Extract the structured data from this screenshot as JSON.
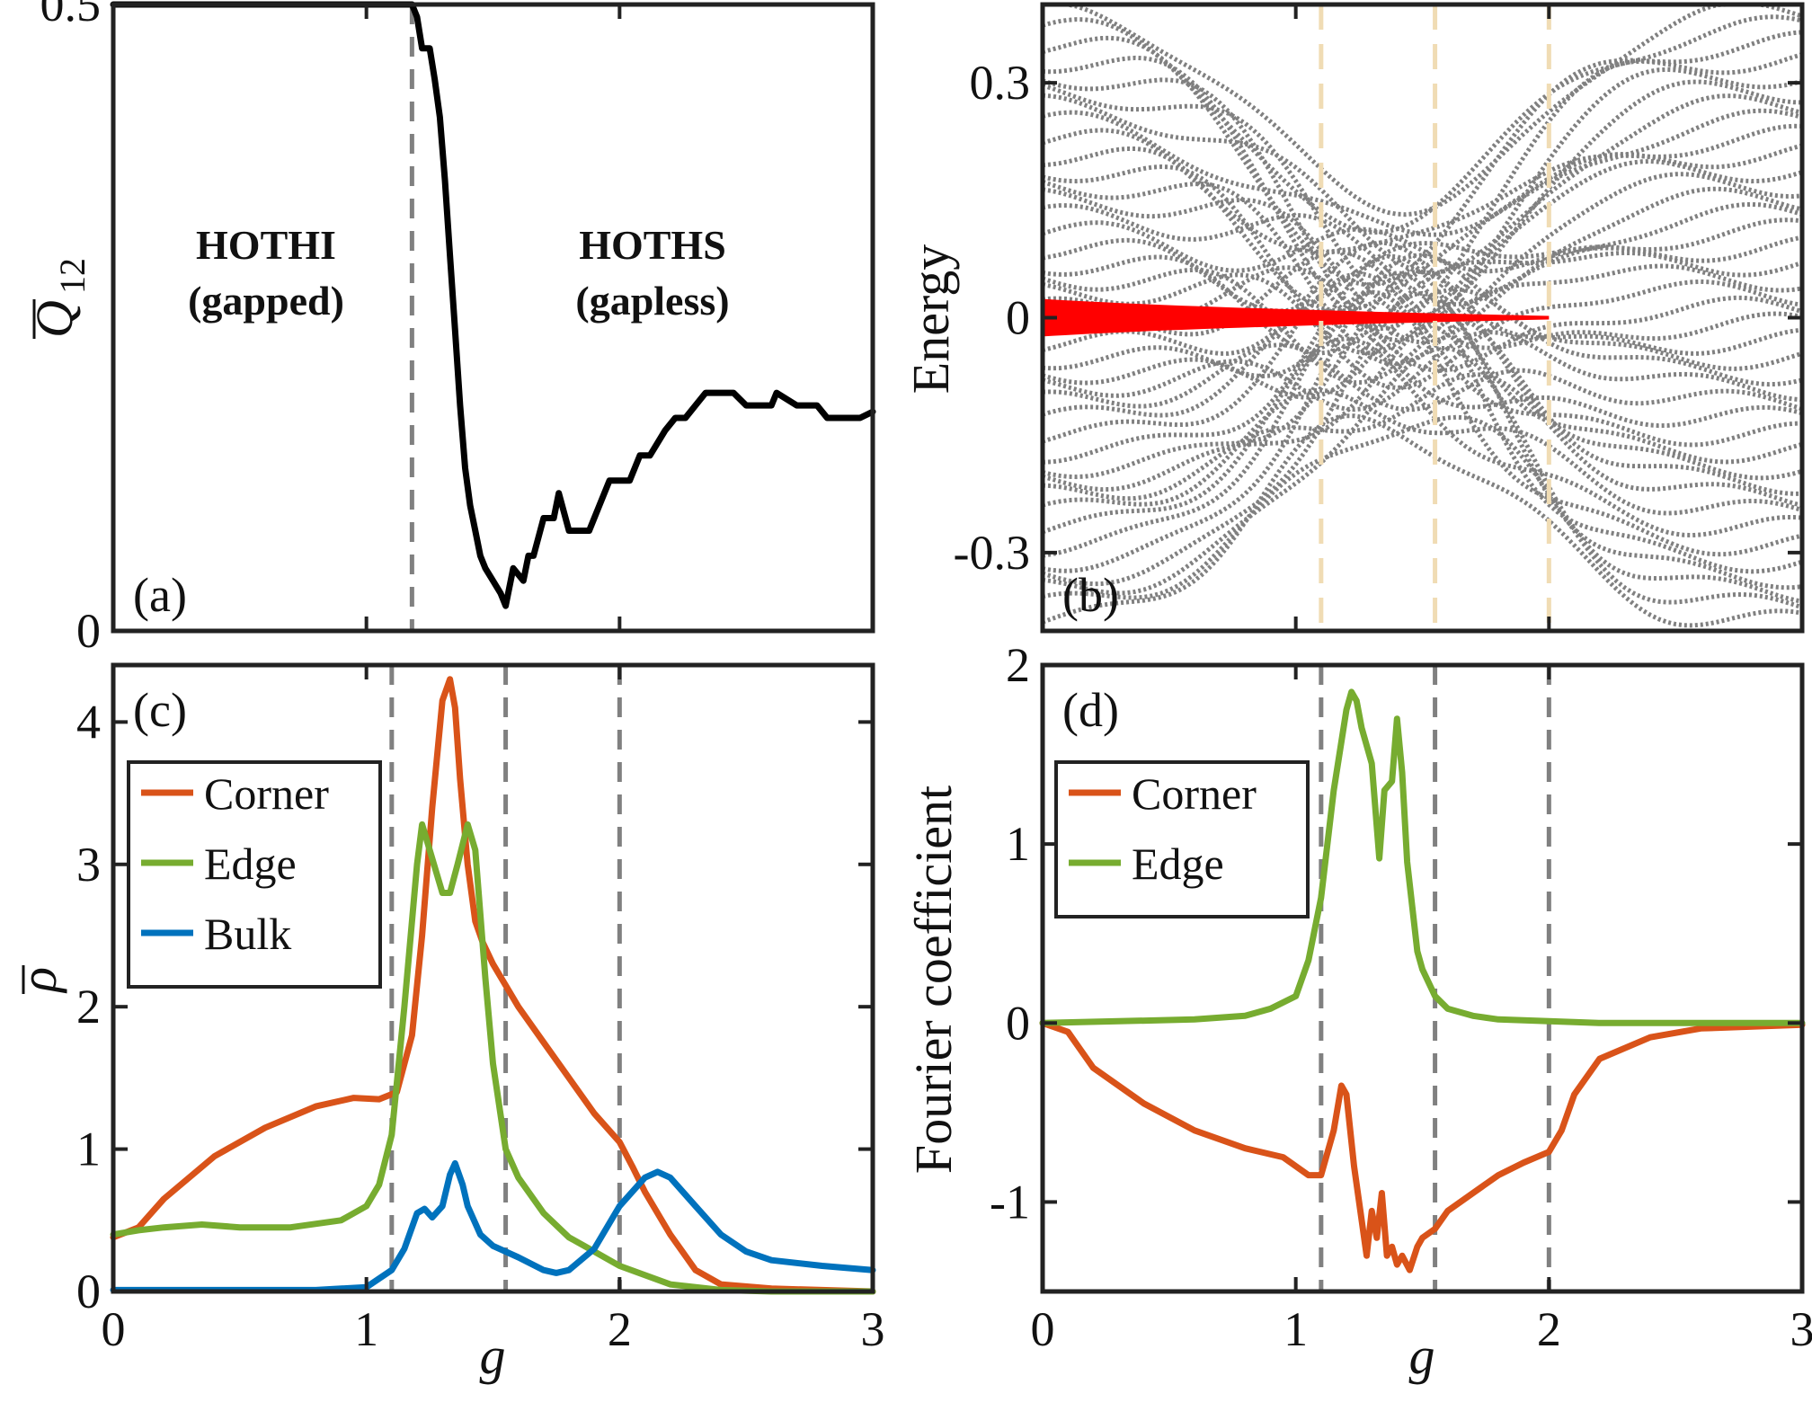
{
  "chart_data": [
    {
      "panel": "(a)",
      "type": "line",
      "ylabel_main": "Q",
      "ylabel_sub": "12",
      "xlim": [
        0,
        3
      ],
      "ylim": [
        0,
        0.5
      ],
      "xticks": [
        0,
        1,
        2,
        3
      ],
      "yticks": [
        0,
        0.5
      ],
      "ytick_labels": [
        "0",
        "0.5"
      ],
      "reference_line_y": 0.5,
      "transition_g": [
        1.18
      ],
      "annotations": [
        {
          "line1": "HOTHI",
          "line2": "(gapped)"
        },
        {
          "line1": "HOTHS",
          "line2": "(gapless)"
        }
      ],
      "series": [
        {
          "color": "#000000",
          "x": [
            0,
            0.3,
            0.6,
            0.9,
            1.18,
            1.2,
            1.22,
            1.25,
            1.27,
            1.29,
            1.31,
            1.33,
            1.35,
            1.37,
            1.39,
            1.41,
            1.43,
            1.45,
            1.47,
            1.5,
            1.53,
            1.55,
            1.58,
            1.62,
            1.64,
            1.66,
            1.7,
            1.74,
            1.76,
            1.8,
            1.88,
            1.92,
            1.96,
            2.04,
            2.08,
            2.12,
            2.18,
            2.22,
            2.26,
            2.3,
            2.34,
            2.4,
            2.45,
            2.5,
            2.6,
            2.62,
            2.7,
            2.78,
            2.82,
            2.86,
            2.9,
            2.95,
            3.0
          ],
          "y": [
            0.5,
            0.5,
            0.5,
            0.5,
            0.5,
            0.49,
            0.465,
            0.465,
            0.44,
            0.41,
            0.36,
            0.3,
            0.24,
            0.18,
            0.13,
            0.1,
            0.08,
            0.06,
            0.05,
            0.04,
            0.03,
            0.02,
            0.05,
            0.04,
            0.06,
            0.06,
            0.09,
            0.09,
            0.11,
            0.08,
            0.08,
            0.1,
            0.12,
            0.12,
            0.14,
            0.14,
            0.16,
            0.17,
            0.17,
            0.18,
            0.19,
            0.19,
            0.19,
            0.18,
            0.18,
            0.19,
            0.18,
            0.18,
            0.17,
            0.17,
            0.17,
            0.17,
            0.175
          ]
        }
      ]
    },
    {
      "panel": "(b)",
      "type": "scatter",
      "ylabel": "Energy",
      "xlim": [
        0,
        3
      ],
      "ylim": [
        -0.4,
        0.4
      ],
      "yticks": [
        -0.3,
        0,
        0.3
      ],
      "ytick_labels": [
        "-0.3",
        "0",
        "0.3"
      ],
      "transition_g": [
        1.1,
        1.55,
        2.0
      ],
      "bulk_color": "#808080",
      "zero_mode_color": "#ff0000",
      "zero_mode_range": [
        0,
        2.0
      ],
      "zero_mode_max_halfwidth": 0.012,
      "band_levels": 40,
      "band_spread_max": 0.09,
      "band_focus_g": 1.4
    },
    {
      "panel": "(c)",
      "type": "line",
      "xlabel": "g",
      "ylabel_main": "ρ",
      "xlim": [
        0,
        3
      ],
      "ylim": [
        0,
        4.4
      ],
      "xticks": [
        0,
        1,
        2,
        3
      ],
      "yticks": [
        0,
        1,
        2,
        3,
        4
      ],
      "transition_g": [
        1.1,
        1.55,
        2.0
      ],
      "legend_position": "upper-left",
      "series": [
        {
          "name": "Corner",
          "color": "#d95319",
          "x": [
            0,
            0.1,
            0.2,
            0.4,
            0.6,
            0.8,
            0.95,
            1.05,
            1.12,
            1.18,
            1.22,
            1.26,
            1.3,
            1.33,
            1.35,
            1.37,
            1.4,
            1.43,
            1.46,
            1.5,
            1.55,
            1.6,
            1.7,
            1.8,
            1.9,
            2.0,
            2.05,
            2.1,
            2.2,
            2.3,
            2.4,
            2.6,
            2.8,
            3.0
          ],
          "y": [
            0.38,
            0.45,
            0.65,
            0.95,
            1.15,
            1.3,
            1.36,
            1.35,
            1.4,
            1.8,
            2.5,
            3.4,
            4.15,
            4.3,
            4.1,
            3.6,
            3.0,
            2.6,
            2.45,
            2.3,
            2.15,
            2.0,
            1.75,
            1.5,
            1.25,
            1.05,
            0.88,
            0.7,
            0.4,
            0.15,
            0.05,
            0.02,
            0.01,
            0.0
          ]
        },
        {
          "name": "Edge",
          "color": "#77ac30",
          "x": [
            0,
            0.1,
            0.2,
            0.35,
            0.5,
            0.7,
            0.9,
            1.0,
            1.05,
            1.1,
            1.15,
            1.2,
            1.22,
            1.25,
            1.3,
            1.33,
            1.36,
            1.4,
            1.43,
            1.47,
            1.5,
            1.55,
            1.6,
            1.7,
            1.8,
            1.9,
            2.0,
            2.2,
            2.4,
            2.6,
            2.8,
            3.0
          ],
          "y": [
            0.4,
            0.43,
            0.45,
            0.47,
            0.45,
            0.45,
            0.5,
            0.6,
            0.75,
            1.1,
            2.0,
            3.0,
            3.28,
            3.1,
            2.8,
            2.8,
            3.0,
            3.28,
            3.1,
            2.2,
            1.6,
            1.0,
            0.8,
            0.55,
            0.38,
            0.28,
            0.18,
            0.05,
            0.01,
            0.0,
            0.0,
            0.0
          ]
        },
        {
          "name": "Bulk",
          "color": "#0072bd",
          "x": [
            0,
            0.5,
            0.8,
            1.0,
            1.1,
            1.15,
            1.2,
            1.23,
            1.26,
            1.3,
            1.33,
            1.35,
            1.38,
            1.4,
            1.45,
            1.5,
            1.6,
            1.7,
            1.75,
            1.8,
            1.9,
            2.0,
            2.1,
            2.15,
            2.2,
            2.3,
            2.4,
            2.5,
            2.6,
            2.8,
            3.0
          ],
          "y": [
            0.01,
            0.01,
            0.01,
            0.03,
            0.15,
            0.3,
            0.55,
            0.58,
            0.52,
            0.6,
            0.82,
            0.9,
            0.75,
            0.6,
            0.4,
            0.32,
            0.24,
            0.15,
            0.13,
            0.15,
            0.3,
            0.6,
            0.8,
            0.84,
            0.8,
            0.6,
            0.4,
            0.28,
            0.22,
            0.18,
            0.15
          ]
        }
      ]
    },
    {
      "panel": "(d)",
      "type": "line",
      "xlabel": "g",
      "ylabel": "Fourier coefficient",
      "xlim": [
        0,
        3
      ],
      "ylim": [
        -1.5,
        2.0
      ],
      "xticks": [
        0,
        1,
        2,
        3
      ],
      "yticks": [
        -1,
        0,
        1,
        2
      ],
      "transition_g": [
        1.1,
        1.55,
        2.0
      ],
      "legend_position": "upper-left",
      "series": [
        {
          "name": "Corner",
          "color": "#d95319",
          "x": [
            0,
            0.1,
            0.2,
            0.4,
            0.6,
            0.8,
            0.95,
            1.05,
            1.1,
            1.15,
            1.18,
            1.2,
            1.23,
            1.26,
            1.28,
            1.3,
            1.32,
            1.34,
            1.36,
            1.38,
            1.4,
            1.42,
            1.45,
            1.48,
            1.5,
            1.55,
            1.6,
            1.7,
            1.8,
            1.9,
            2.0,
            2.05,
            2.1,
            2.2,
            2.4,
            2.6,
            3.0
          ],
          "y": [
            0.0,
            -0.05,
            -0.25,
            -0.45,
            -0.6,
            -0.7,
            -0.75,
            -0.85,
            -0.85,
            -0.6,
            -0.35,
            -0.4,
            -0.8,
            -1.1,
            -1.3,
            -1.05,
            -1.2,
            -0.95,
            -1.3,
            -1.25,
            -1.35,
            -1.3,
            -1.38,
            -1.25,
            -1.2,
            -1.15,
            -1.05,
            -0.95,
            -0.85,
            -0.78,
            -0.72,
            -0.6,
            -0.4,
            -0.2,
            -0.08,
            -0.03,
            -0.01
          ]
        },
        {
          "name": "Edge",
          "color": "#77ac30",
          "x": [
            0,
            0.3,
            0.6,
            0.8,
            0.9,
            1.0,
            1.05,
            1.1,
            1.15,
            1.2,
            1.22,
            1.24,
            1.26,
            1.3,
            1.33,
            1.35,
            1.38,
            1.4,
            1.42,
            1.44,
            1.48,
            1.5,
            1.55,
            1.6,
            1.7,
            1.8,
            2.0,
            2.2,
            3.0
          ],
          "y": [
            0.0,
            0.01,
            0.02,
            0.04,
            0.08,
            0.15,
            0.35,
            0.7,
            1.3,
            1.75,
            1.85,
            1.8,
            1.65,
            1.45,
            0.92,
            1.3,
            1.35,
            1.7,
            1.4,
            0.9,
            0.4,
            0.3,
            0.15,
            0.08,
            0.04,
            0.02,
            0.01,
            0.0,
            0.0
          ]
        }
      ]
    }
  ]
}
